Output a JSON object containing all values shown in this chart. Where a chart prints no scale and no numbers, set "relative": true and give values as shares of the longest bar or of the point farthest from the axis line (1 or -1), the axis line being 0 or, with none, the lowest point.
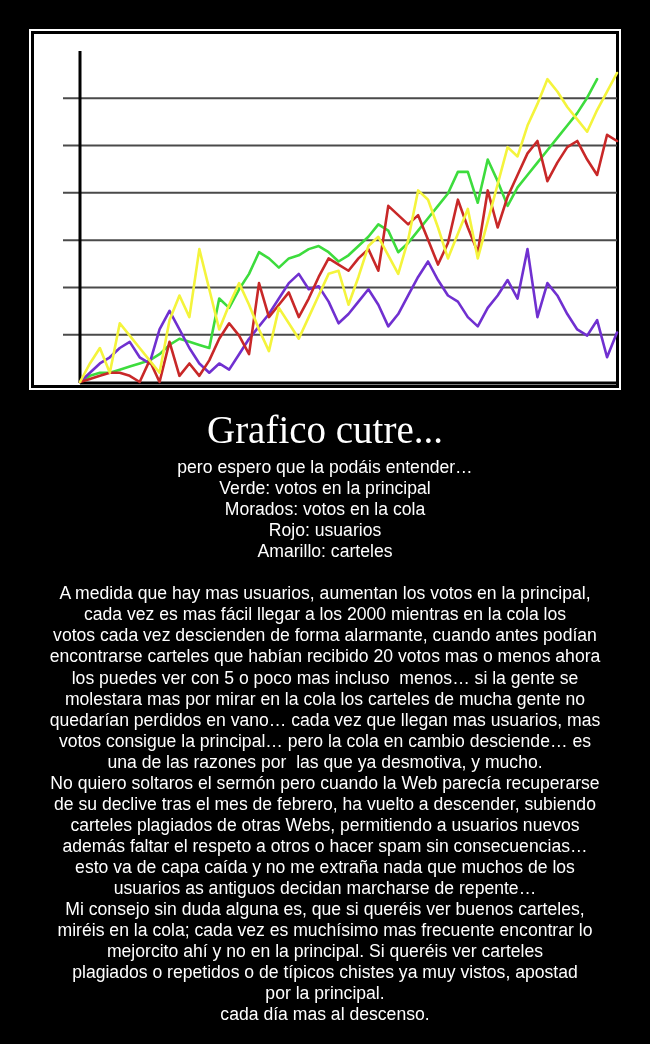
{
  "chart_data": {
    "type": "line",
    "title": "Grafico cutre...",
    "subtitle": "pero espero que la podáis entender…\nVerde: votos en la principal\nMorados: votos en la cola\nRojo: usuarios\nAmarillo: carteles",
    "annotations": [
      "A medida que hay mas usuarios, aumentan los votos en la principal,\ncada vez es mas fácil llegar a los 2000 mientras en la cola los\nvotos cada vez descienden de forma alarmante, cuando antes podían\nencontrarse carteles que habían recibido 20 votos mas o menos ahora\nlos puedes ver con 5 o poco mas incluso  menos… si la gente se\nmolestara mas por mirar en la cola los carteles de mucha gente no\nquedarían perdidos en vano… cada vez que llegan mas usuarios, mas\nvotos consigue la principal… pero la cola en cambio desciende… es\nuna de las razones por  las que ya desmotiva, y mucho.\nNo quiero soltaros el sermón pero cuando la Web parecía recuperarse\nde su declive tras el mes de febrero, ha vuelto a descender, subiendo\ncarteles plagiados de otras Webs, permitiendo a usuarios nuevos\nademás faltar el respeto a otros o hacer spam sin consecuencias…\nesto va de capa caída y no me extraña nada que muchos de los\nusuarios as antiguos decidan marcharse de repente…\nMi consejo sin duda alguna es, que si queréis ver buenos carteles,\nmiréis en la cola; cada vez es muchísimo mas frecuente encontrar lo\nmejorcito ahí y no en la principal. Si queréis ver carteles\nplagiados o repetidos o de típicos chistes ya muy vistos, apostad\npor la principal.\ncada día mas al descenso."
    ],
    "relative": true,
    "grid": true,
    "categories": [
      null,
      null,
      null,
      null,
      null,
      null,
      null,
      null,
      null,
      null,
      null,
      null,
      null,
      null,
      null,
      null,
      null,
      null,
      null,
      null,
      null,
      null,
      null,
      null,
      null,
      null,
      null,
      null,
      null,
      null,
      null,
      null,
      null,
      null,
      null,
      null,
      null,
      null,
      null,
      null,
      null,
      null,
      null,
      null,
      null,
      null,
      null,
      null,
      null,
      null,
      null,
      null,
      null,
      null,
      null
    ],
    "series": [
      {
        "color": "#3ddc3d",
        "values": [
          0,
          0.02,
          0.03,
          0.03,
          0.04,
          0.05,
          0.06,
          0.07,
          0.09,
          0.12,
          0.14,
          0.13,
          0.12,
          0.11,
          0.27,
          0.24,
          0.3,
          0.35,
          0.42,
          0.4,
          0.37,
          0.4,
          0.41,
          0.43,
          0.44,
          0.42,
          0.39,
          0.41,
          0.44,
          0.47,
          0.51,
          0.49,
          0.42,
          0.45,
          0.49,
          0.53,
          0.57,
          0.61,
          0.68,
          0.68,
          0.58,
          0.72,
          0.65,
          0.57,
          0.63,
          0.67,
          0.71,
          0.75,
          0.79,
          0.83,
          0.87,
          0.92,
          0.98,
          null,
          null
        ]
      },
      {
        "color": "#7030d0",
        "values": [
          0,
          0.03,
          0.06,
          0.08,
          0.11,
          0.13,
          0.08,
          0.06,
          0.17,
          0.23,
          0.17,
          0.11,
          0.06,
          0.03,
          0.06,
          0.04,
          0.09,
          0.14,
          0.18,
          0.22,
          0.27,
          0.32,
          0.35,
          0.3,
          0.31,
          0.26,
          0.19,
          0.22,
          0.26,
          0.3,
          0.25,
          0.18,
          0.22,
          0.28,
          0.34,
          0.39,
          0.33,
          0.28,
          0.26,
          0.21,
          0.18,
          0.24,
          0.28,
          0.33,
          0.27,
          0.43,
          0.21,
          0.32,
          0.28,
          0.22,
          0.17,
          0.15,
          0.2,
          0.08,
          0.16
        ]
      },
      {
        "color": "#c82828",
        "values": [
          0,
          0.01,
          0.02,
          0.03,
          0.03,
          0.02,
          0,
          0.07,
          0,
          0.13,
          0.02,
          0.06,
          0.02,
          0.07,
          0.14,
          0.19,
          0.15,
          0.09,
          0.32,
          0.21,
          0.25,
          0.29,
          0.21,
          0.27,
          0.34,
          0.4,
          0.38,
          0.36,
          0.4,
          0.43,
          0.36,
          0.57,
          0.54,
          0.51,
          0.54,
          0.46,
          0.38,
          0.45,
          0.59,
          0.5,
          0.42,
          0.62,
          0.5,
          0.6,
          0.67,
          0.74,
          0.78,
          0.65,
          0.71,
          0.76,
          0.78,
          0.72,
          0.67,
          0.8,
          0.78
        ]
      },
      {
        "color": "#f4f43c",
        "values": [
          0,
          0.06,
          0.11,
          0.03,
          0.19,
          0.15,
          0.11,
          0.07,
          0.03,
          0.2,
          0.28,
          0.21,
          0.43,
          0.3,
          0.17,
          0.25,
          0.32,
          0.25,
          0.17,
          0.1,
          0.24,
          0.19,
          0.14,
          0.21,
          0.28,
          0.35,
          0.36,
          0.25,
          0.34,
          0.44,
          0.47,
          0.41,
          0.35,
          0.46,
          0.62,
          0.59,
          0.5,
          0.4,
          0.48,
          0.56,
          0.4,
          0.52,
          0.64,
          0.76,
          0.73,
          0.83,
          0.9,
          0.98,
          0.94,
          0.89,
          0.85,
          0.81,
          0.88,
          0.94,
          1
        ]
      }
    ]
  }
}
